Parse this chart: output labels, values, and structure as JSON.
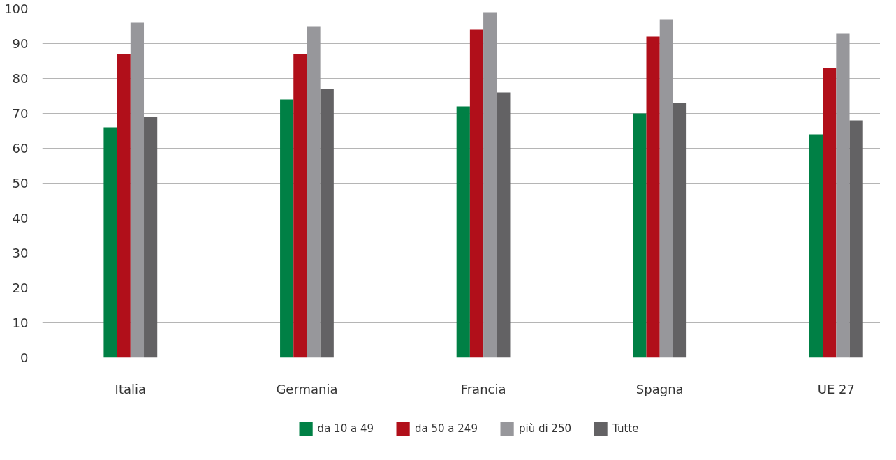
{
  "chart_data": {
    "type": "bar",
    "categories": [
      "Italia",
      "Germania",
      "Francia",
      "Spagna",
      "UE 27"
    ],
    "series": [
      {
        "name": "da 10 a 49",
        "color": "#008045",
        "values": [
          66,
          74,
          72,
          70,
          64
        ]
      },
      {
        "name": "da 50 a 249",
        "color": "#b10f1a",
        "values": [
          87,
          87,
          94,
          92,
          83
        ]
      },
      {
        "name": "più di 250",
        "color": "#97979b",
        "values": [
          96,
          95,
          99,
          97,
          93
        ]
      },
      {
        "name": "Tutte",
        "color": "#636264",
        "values": [
          69,
          77,
          76,
          73,
          68
        ]
      }
    ],
    "ylim": [
      0,
      100
    ],
    "yticks": [
      0,
      10,
      20,
      30,
      40,
      50,
      60,
      70,
      80,
      90,
      100
    ],
    "grid": "y",
    "legend": "bottom"
  }
}
